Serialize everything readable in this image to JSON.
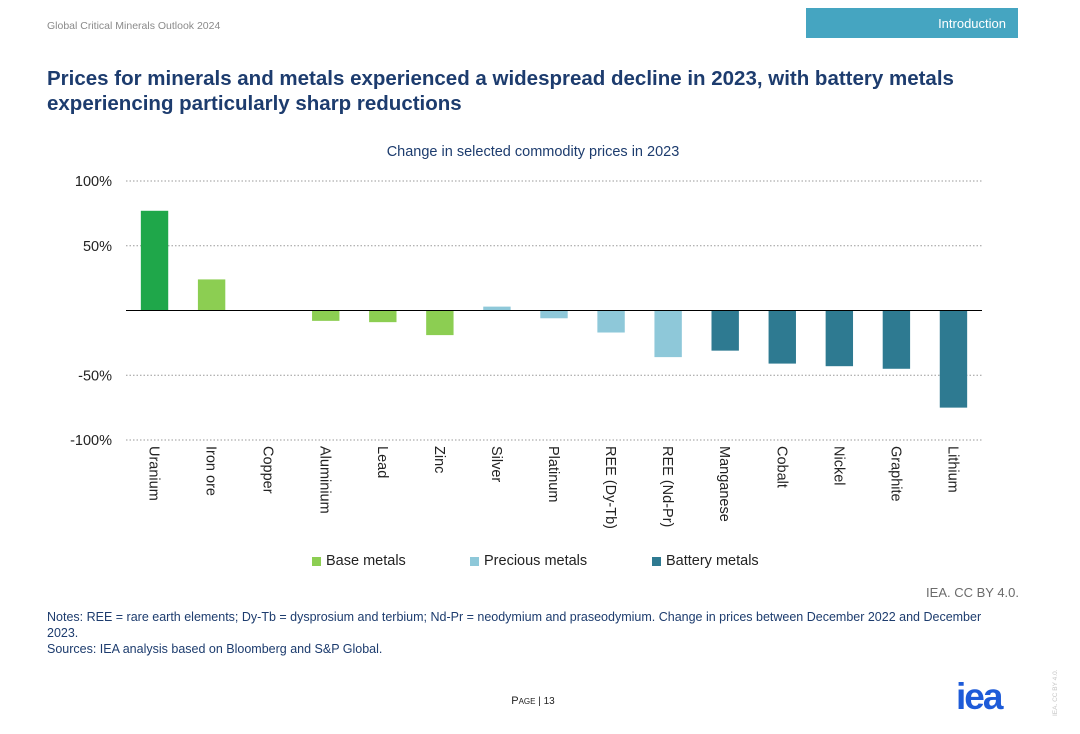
{
  "header": {
    "doc_title": "Global Critical Minerals Outlook 2024",
    "section_tab": "Introduction"
  },
  "headline": "Prices for minerals and metals experienced a widespread decline in 2023, with battery metals experiencing particularly sharp reductions",
  "chart_data": {
    "type": "bar",
    "title": "Change in selected commodity prices in 2023",
    "xlabel": "",
    "ylabel": "",
    "ylim": [
      -100,
      100
    ],
    "yticks": [
      100,
      50,
      -50,
      -100
    ],
    "ytick_labels": [
      "100%",
      "50%",
      "-50%",
      "-100%"
    ],
    "grid": true,
    "legend_position": "bottom",
    "categories": [
      "Uranium",
      "Iron ore",
      "Copper",
      "Aluminium",
      "Lead",
      "Zinc",
      "Silver",
      "Platinum",
      "REE (Dy-Tb)",
      "REE (Nd-Pr)",
      "Manganese",
      "Cobalt",
      "Nickel",
      "Graphite",
      "Lithium"
    ],
    "values": [
      77,
      24,
      0,
      -8,
      -9,
      -19,
      3,
      -6,
      -17,
      -36,
      -31,
      -41,
      -43,
      -45,
      -75
    ],
    "groups": [
      "highlight",
      "base",
      "base",
      "base",
      "base",
      "base",
      "precious",
      "precious",
      "precious",
      "precious",
      "battery",
      "battery",
      "battery",
      "battery",
      "battery"
    ],
    "group_colors": {
      "highlight": "#1fa74a",
      "base": "#8cce52",
      "precious": "#8ec8d9",
      "battery": "#2e7a91"
    },
    "legend": [
      {
        "label": "Base metals",
        "color": "#8cce52"
      },
      {
        "label": "Precious metals",
        "color": "#8ec8d9"
      },
      {
        "label": "Battery metals",
        "color": "#2e7a91"
      }
    ]
  },
  "attribution": "IEA. CC BY 4.0.",
  "notes": {
    "line1": "Notes: REE = rare earth elements; Dy-Tb = dysprosium and terbium; Nd-Pr = neodymium and praseodymium. Change in prices between December 2022 and December 2023.",
    "line2": "Sources: IEA analysis based on Bloomberg and S&P Global."
  },
  "footer": {
    "page_label": "Page",
    "page_number": "13",
    "logo_text": "iea",
    "side_license": "IEA. CC BY 4.0."
  }
}
